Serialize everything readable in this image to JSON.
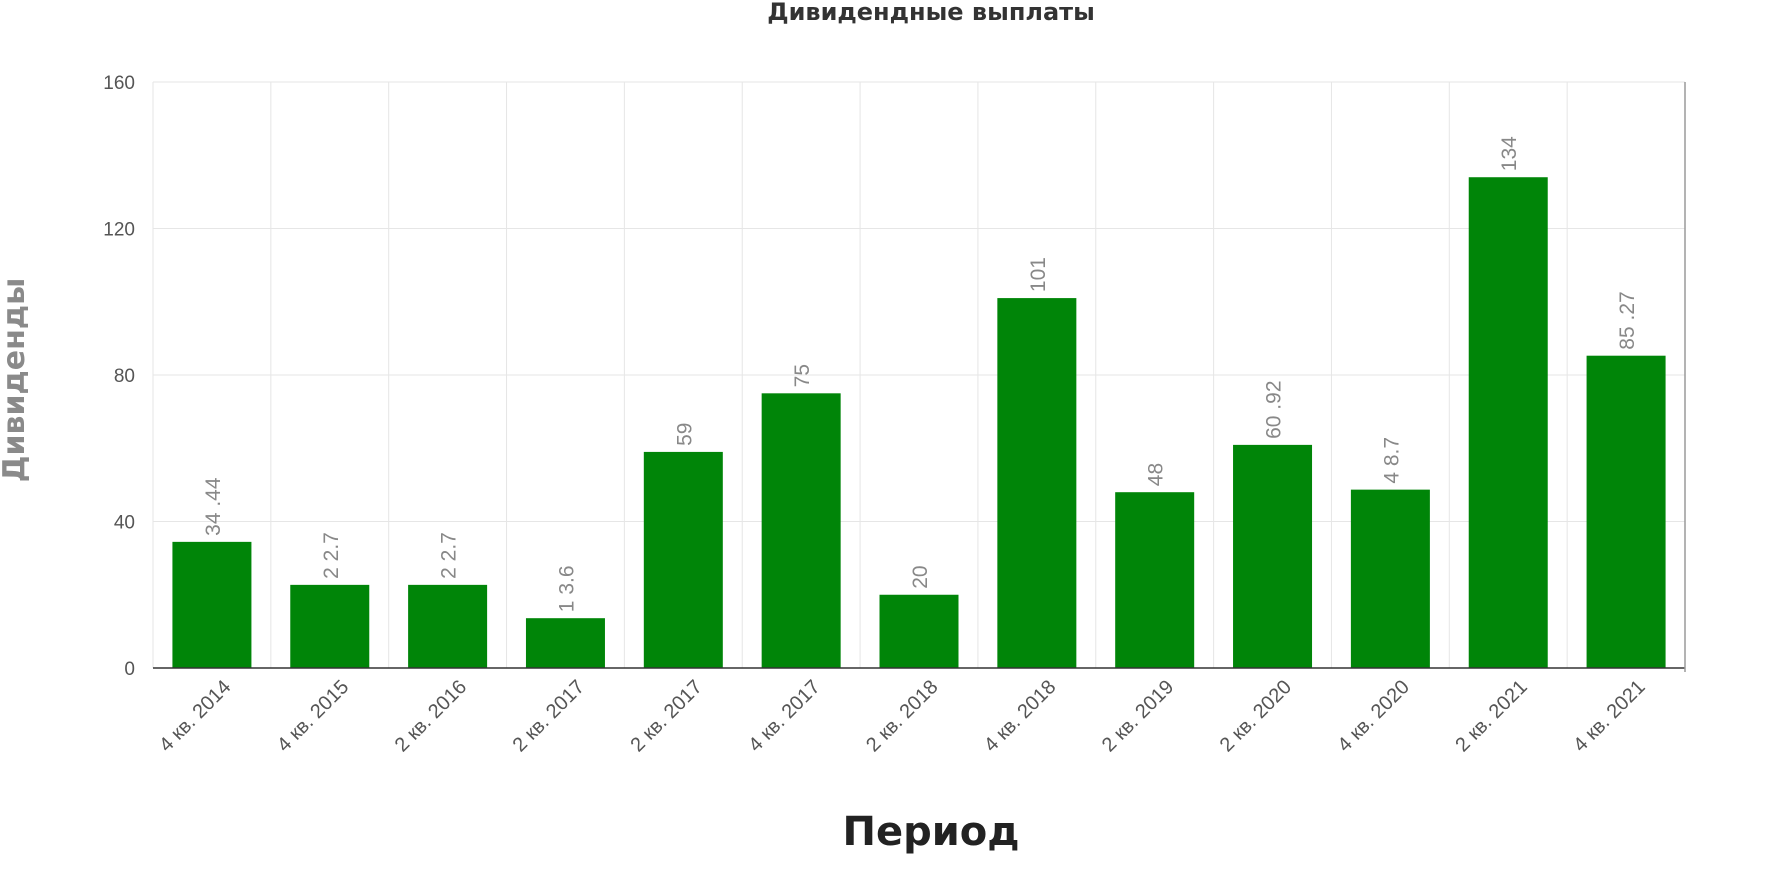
{
  "chart_data": {
    "type": "bar",
    "title": "Дивидендные выплаты",
    "xlabel": "Период",
    "ylabel": "Дивиденды",
    "categories": [
      "4 кв. 2014",
      "4 кв. 2015",
      "2 кв. 2016",
      "2 кв. 2017",
      "2 кв. 2017",
      "4 кв. 2017",
      "2 кв. 2018",
      "4 кв. 2018",
      "2 кв. 2019",
      "2 кв. 2020",
      "4 кв. 2020",
      "2 кв. 2021",
      "4 кв. 2021"
    ],
    "values": [
      34.44,
      22.7,
      22.7,
      13.6,
      59,
      75,
      20,
      101,
      48,
      60.92,
      48.7,
      134,
      85.27
    ],
    "value_labels": [
      "34 .44",
      "2 2.7",
      "2 2.7",
      "1 3.6",
      "59",
      "75",
      "20",
      "101",
      "48",
      "60 .92",
      "4 8.7",
      "134",
      "85 .27"
    ],
    "ylim": [
      0,
      160
    ],
    "yticks": [
      0,
      40,
      80,
      120,
      160
    ],
    "grid": true,
    "legend": "none",
    "bar_color": "#008508"
  }
}
